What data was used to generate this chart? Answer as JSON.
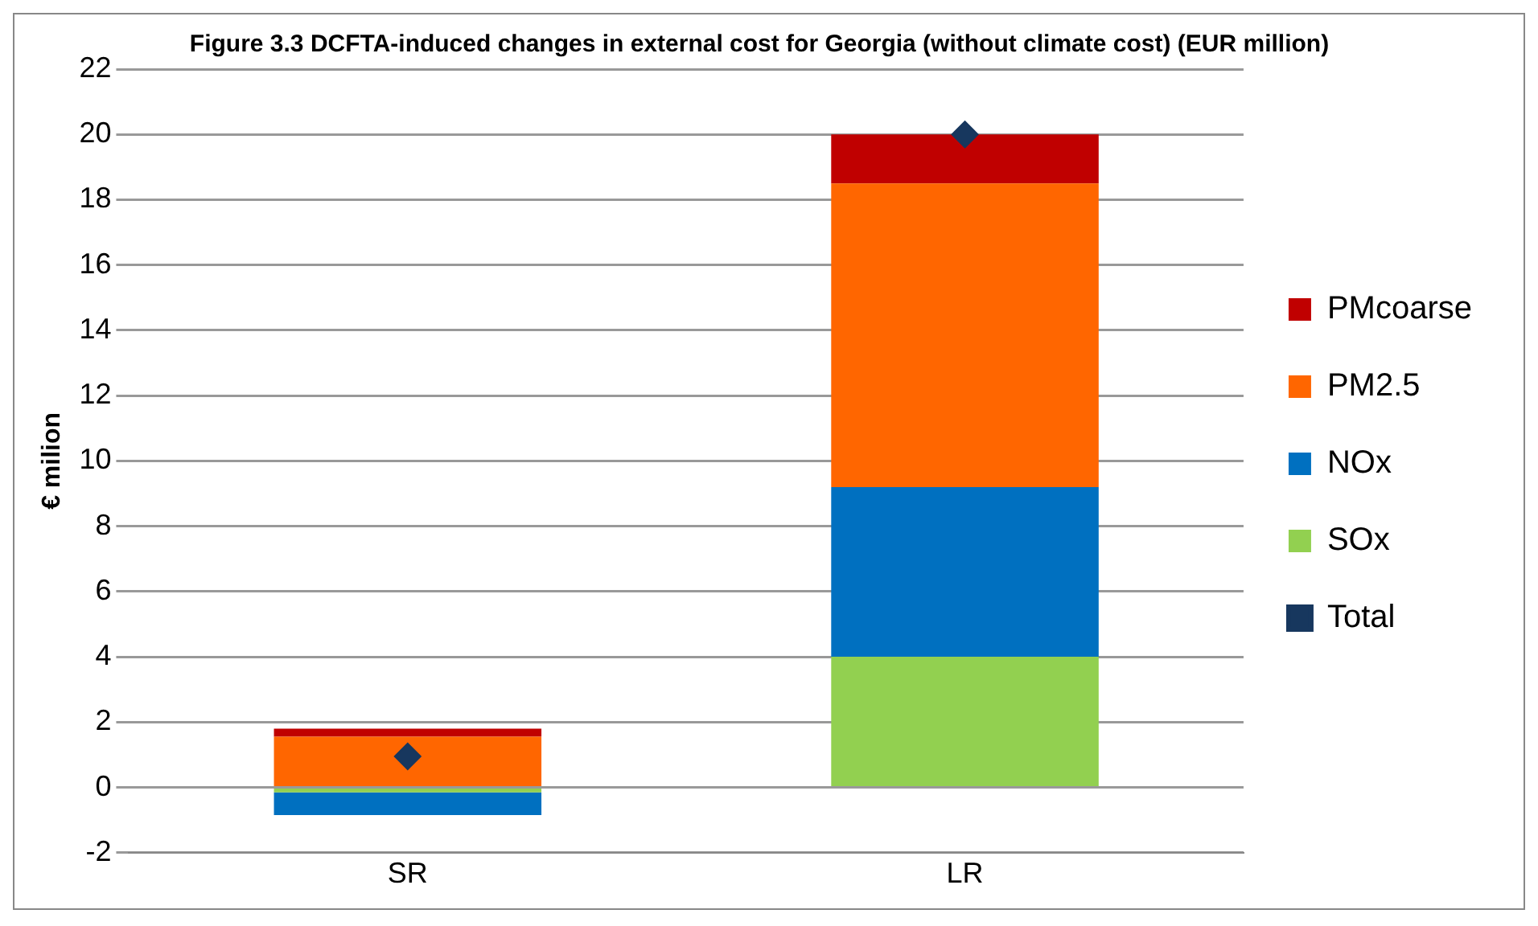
{
  "chart_data": {
    "type": "bar",
    "title": "Figure 3.3 DCFTA-induced changes in external cost for Georgia (without climate cost) (EUR million)",
    "ylabel": "€ milion",
    "categories": [
      "SR",
      "LR"
    ],
    "stacked": true,
    "series": [
      {
        "name": "SOx",
        "color": "#92d050",
        "values": [
          -0.15,
          4.0
        ]
      },
      {
        "name": "NOx",
        "color": "#0070c0",
        "values": [
          -0.7,
          5.2
        ]
      },
      {
        "name": "PM2.5",
        "color": "#ff6600",
        "values": [
          1.55,
          9.3
        ]
      },
      {
        "name": "PMcoarse",
        "color": "#c00000",
        "values": [
          0.25,
          1.5
        ]
      },
      {
        "name": "Total",
        "type": "scatter",
        "marker": "diamond",
        "color": "#17375e",
        "x": [
          "SR",
          "LR"
        ],
        "values": [
          0.95,
          20.0
        ]
      }
    ],
    "ylim": [
      -2,
      22
    ],
    "yticks": [
      -2,
      0,
      2,
      4,
      6,
      8,
      10,
      12,
      14,
      16,
      18,
      20,
      22
    ],
    "grid": "y",
    "legend": "right"
  }
}
